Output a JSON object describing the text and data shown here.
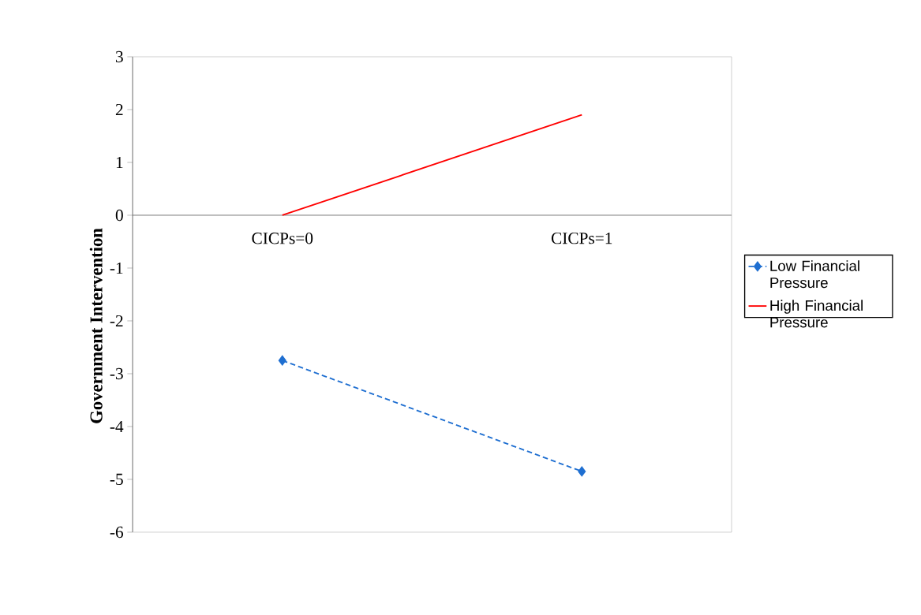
{
  "chart_data": {
    "type": "line",
    "ylabel": "Government Intervention",
    "categories": [
      "CICPs=0",
      "CICPs=1"
    ],
    "series": [
      {
        "name": "Low Financial Pressure",
        "color": "#1f6fd1",
        "values": [
          -2.75,
          -4.85
        ],
        "marker": "diamond",
        "line_style": "dashed"
      },
      {
        "name": "High Financial Pressure",
        "color": "#ff0000",
        "values": [
          0,
          1.9
        ],
        "marker": "none",
        "line_style": "solid"
      }
    ],
    "ylim": [
      -6,
      3
    ],
    "yticks": [
      -6,
      -5,
      -4,
      -3,
      -2,
      -1,
      0,
      1,
      2,
      3
    ],
    "grid": false,
    "legend": "right"
  }
}
